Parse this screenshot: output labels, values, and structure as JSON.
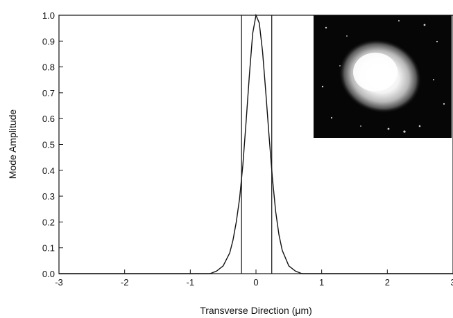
{
  "chart_data": {
    "type": "line",
    "title": "",
    "xlabel": "Transverse Direction (μm)",
    "ylabel": "Mode Amplitude",
    "xlim": [
      -3,
      3
    ],
    "ylim": [
      0,
      1.0
    ],
    "x_ticks": [
      "-3",
      "-2",
      "-1",
      "0",
      "1",
      "2",
      "3"
    ],
    "y_ticks": [
      "0.0",
      "0.1",
      "0.2",
      "0.3",
      "0.4",
      "0.5",
      "0.6",
      "0.7",
      "0.8",
      "0.9",
      "1.0"
    ],
    "grid": false,
    "series": [
      {
        "x": [
          -0.7,
          -0.6,
          -0.5,
          -0.4,
          -0.35,
          -0.3,
          -0.25,
          -0.2,
          -0.15,
          -0.1,
          -0.05,
          0.0,
          0.05,
          0.1,
          0.15,
          0.2,
          0.25,
          0.3,
          0.35,
          0.4,
          0.5,
          0.6,
          0.7
        ],
        "values": [
          0.0,
          0.01,
          0.03,
          0.08,
          0.13,
          0.2,
          0.29,
          0.42,
          0.59,
          0.77,
          0.93,
          1.0,
          0.97,
          0.86,
          0.7,
          0.53,
          0.37,
          0.24,
          0.15,
          0.09,
          0.03,
          0.01,
          0.0
        ]
      }
    ],
    "vertical_lines_x": [
      -0.22,
      0.24
    ],
    "inset": {
      "description_name": "mode-intensity-image",
      "position": "top-right"
    }
  }
}
